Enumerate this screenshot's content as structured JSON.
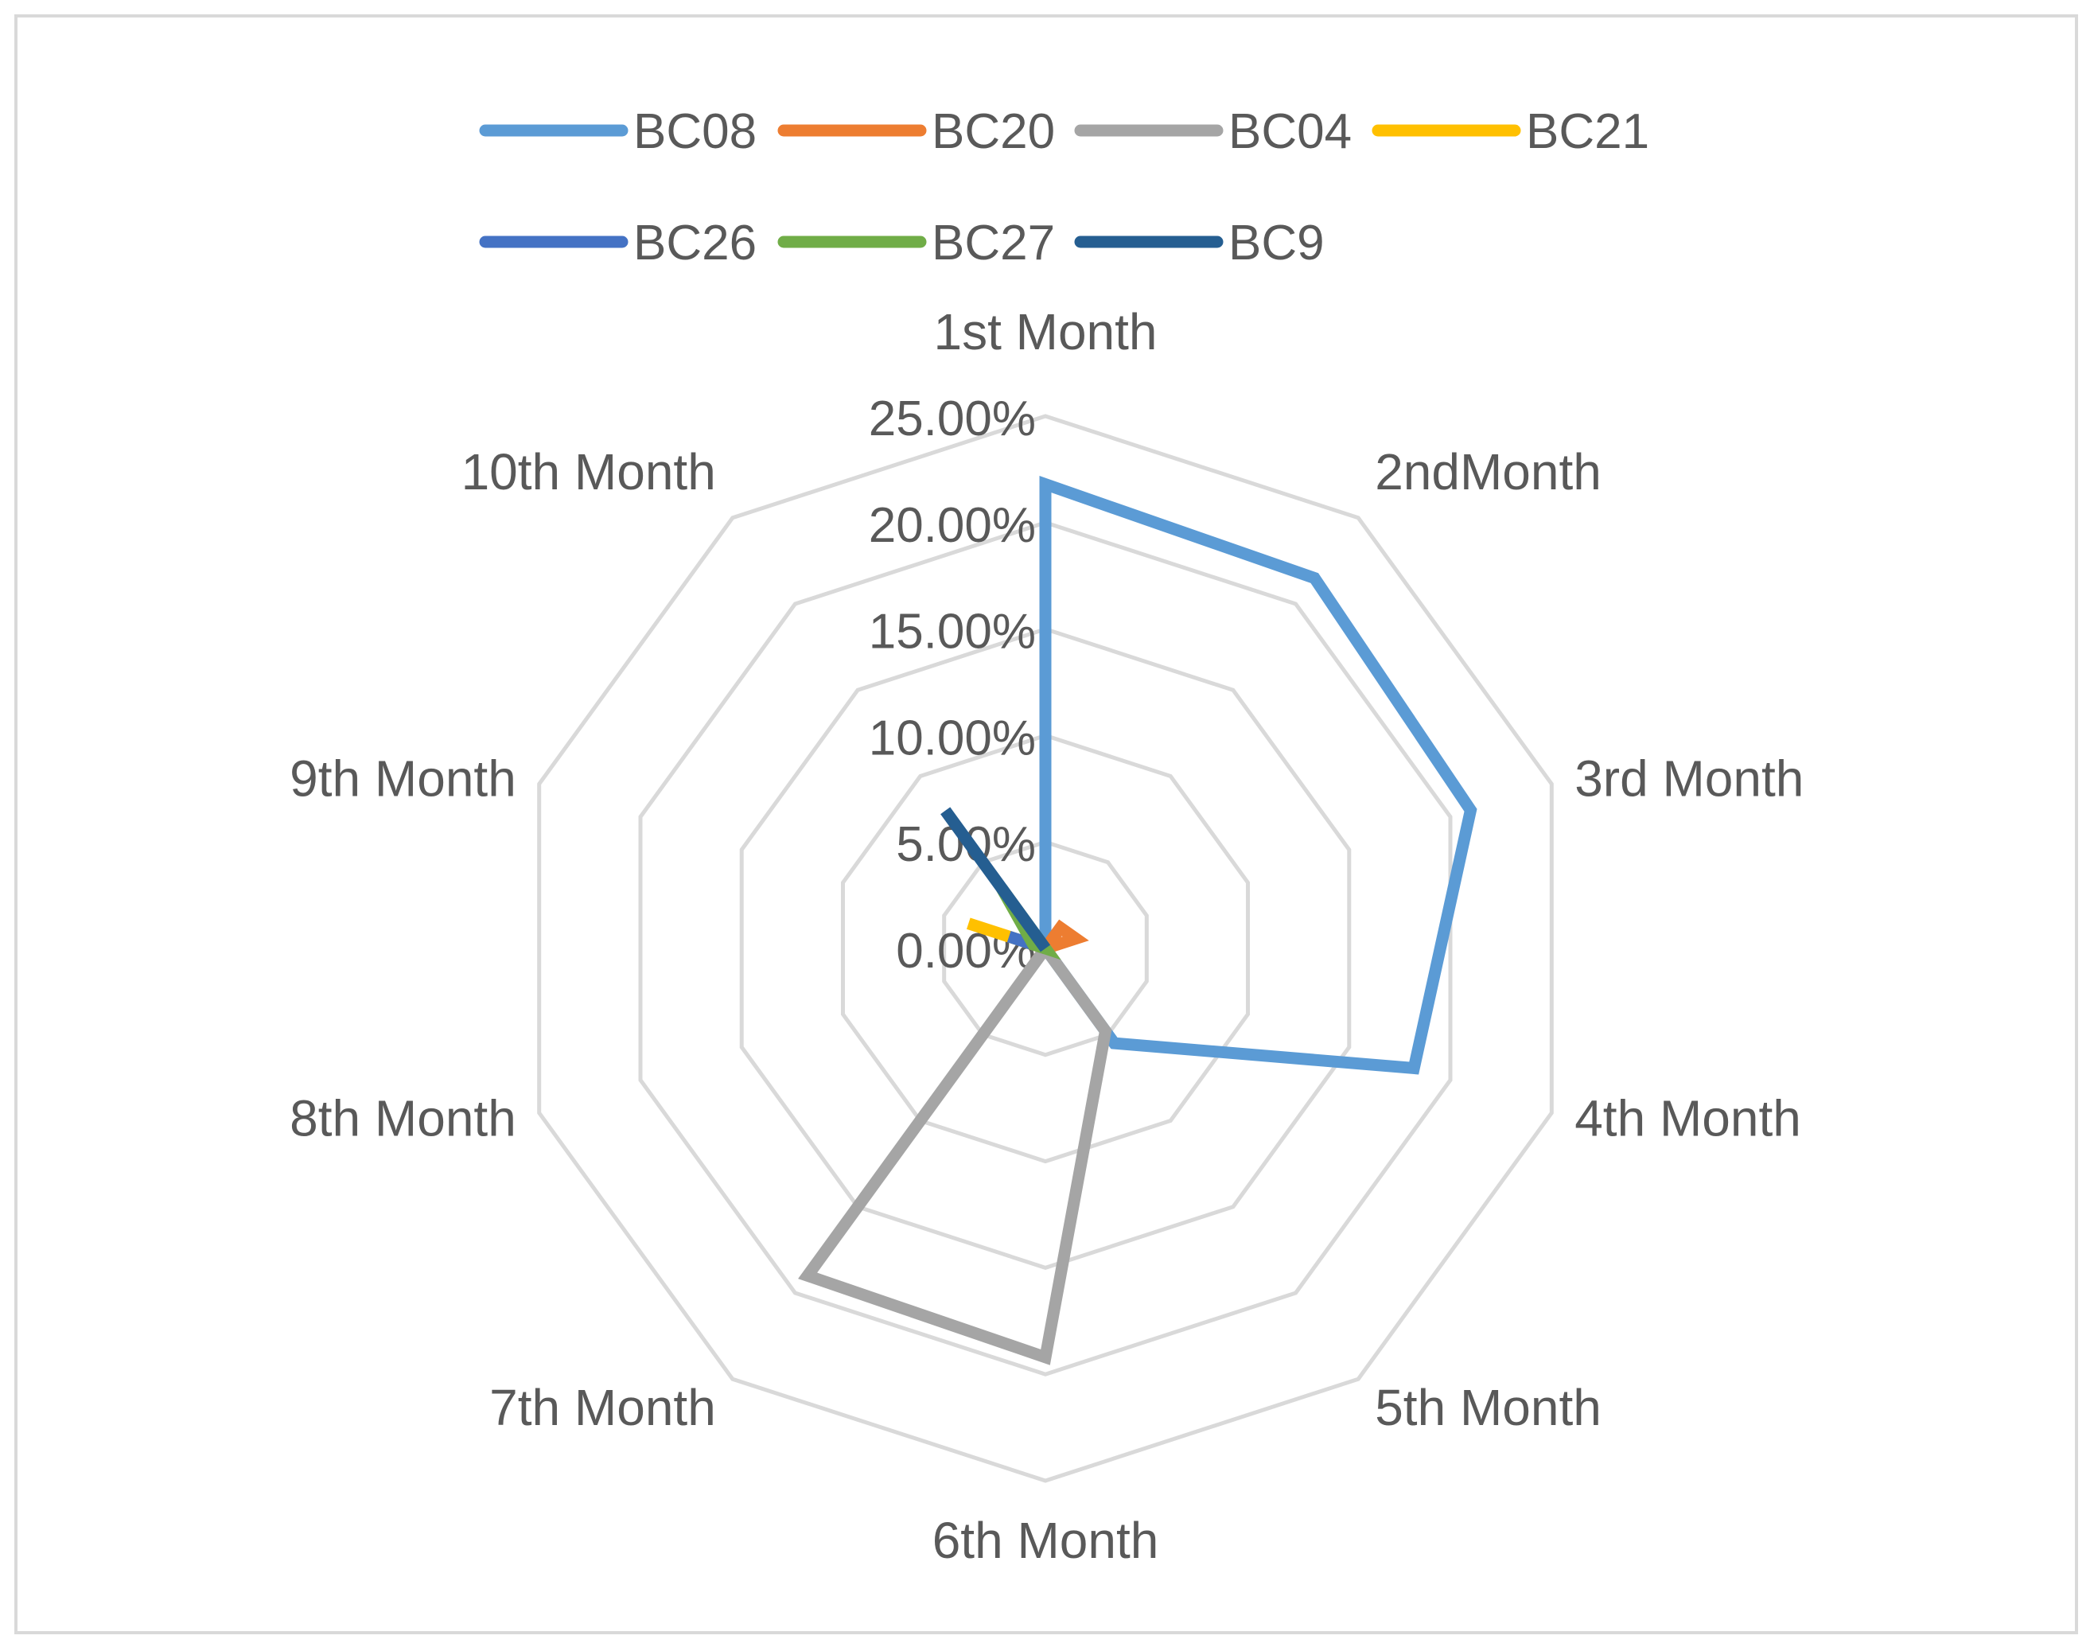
{
  "chart_data": {
    "type": "radar",
    "title": "",
    "categories": [
      "1st Month",
      "2ndMonth",
      "3rd Month",
      "4th Month",
      "5th Month",
      "6th Month",
      "7th Month",
      "8th Month",
      "9th Month",
      "10th Month"
    ],
    "axis": {
      "min": 0,
      "max": 25,
      "step": 5,
      "tick_labels": [
        "0.00%",
        "5.00%",
        "10.00%",
        "15.00%",
        "20.00%",
        "25.00%"
      ]
    },
    "grid": true,
    "legend_position": "top",
    "series": [
      {
        "name": "BC08",
        "color": "#5b9bd5",
        "values": [
          21.8,
          21.5,
          21.0,
          18.2,
          5.5,
          0,
          0,
          0,
          0,
          0
        ]
      },
      {
        "name": "BC20",
        "color": "#ed7d31",
        "values": [
          0,
          1.2,
          1.5,
          0,
          0,
          0,
          0,
          0,
          0,
          0
        ]
      },
      {
        "name": "BC04",
        "color": "#a5a5a5",
        "values": [
          0,
          0,
          0,
          0,
          4.8,
          19.2,
          19.0,
          0,
          0,
          0
        ]
      },
      {
        "name": "BC21",
        "color": "#ffc000",
        "values": [
          0,
          0,
          0,
          0,
          0,
          0,
          0,
          0,
          3.8,
          0
        ]
      },
      {
        "name": "BC26",
        "color": "#4472c4",
        "values": [
          0,
          0,
          0,
          0,
          0,
          0,
          0,
          0,
          1.8,
          0
        ]
      },
      {
        "name": "BC27",
        "color": "#70ad47",
        "values": [
          0,
          0,
          0,
          0,
          0,
          0,
          0,
          0,
          0.6,
          3.5
        ]
      },
      {
        "name": "BC9",
        "color": "#255e91",
        "values": [
          0,
          0,
          0,
          0,
          0,
          0,
          0,
          0,
          0,
          8.0
        ]
      }
    ]
  }
}
